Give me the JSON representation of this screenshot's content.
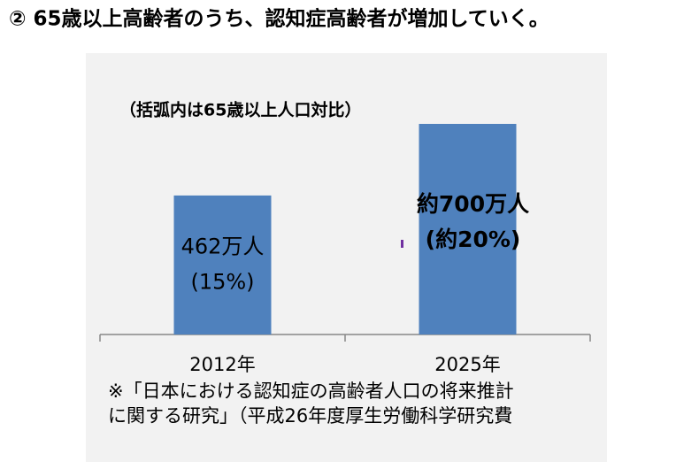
{
  "chart_data": {
    "type": "bar",
    "title": "② 65歳以上高齢者のうち、認知症高齢者が増加していく。",
    "annotation": "（括弧内は65歳以上人口対比）",
    "categories": [
      "2012年",
      "2025年"
    ],
    "values": [
      462,
      700
    ],
    "value_labels": [
      "462万人",
      "約700万人"
    ],
    "share_labels": [
      "(15%)",
      "(約20%)"
    ],
    "color": "#4f81bd",
    "note": [
      "※「日本における認知症の高齢者人口の将来推計",
      "に関する研究」（平成26年度厚生労働科学研究費"
    ]
  }
}
